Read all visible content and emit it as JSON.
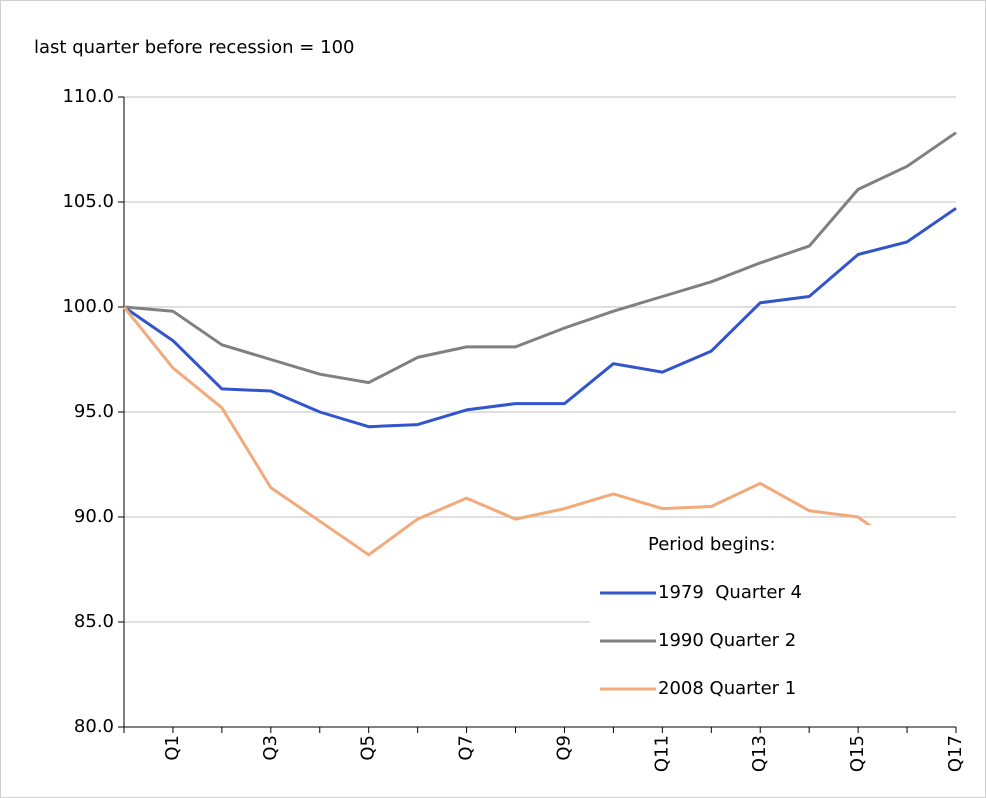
{
  "chart_data": {
    "type": "line",
    "subtitle": "last quarter before recession = 100",
    "categories": [
      null,
      "Q1",
      null,
      "Q3",
      null,
      "Q5",
      null,
      "Q7",
      null,
      "Q9",
      null,
      "Q11",
      null,
      "Q13",
      null,
      "Q15",
      null,
      "Q17"
    ],
    "series": [
      {
        "name": "1979  Quarter 4",
        "color": "#3355cc",
        "values": [
          100,
          98.4,
          96.1,
          96.0,
          95.0,
          94.3,
          94.4,
          95.1,
          95.4,
          95.4,
          97.3,
          96.9,
          97.9,
          100.2,
          100.5,
          102.5,
          103.1,
          104.7
        ]
      },
      {
        "name": "1990 Quarter 2",
        "color": "#808080",
        "values": [
          100,
          99.8,
          98.2,
          97.5,
          96.8,
          96.4,
          97.6,
          98.1,
          98.1,
          99.0,
          99.8,
          100.5,
          101.2,
          102.1,
          102.9,
          105.6,
          106.7,
          108.3
        ]
      },
      {
        "name": "2008 Quarter 1",
        "color": "#f2aa7a",
        "values": [
          100,
          97.1,
          95.2,
          91.4,
          89.8,
          88.2,
          89.9,
          90.9,
          89.9,
          90.4,
          91.1,
          90.4,
          90.5,
          91.6,
          90.3,
          90.0,
          88.3,
          86.8
        ]
      }
    ],
    "ylim": [
      80,
      110
    ],
    "yticks": [
      {
        "value": 80,
        "label": "80.0"
      },
      {
        "value": 85,
        "label": "85.0"
      },
      {
        "value": 90,
        "label": "90.0"
      },
      {
        "value": 95,
        "label": "95.0"
      },
      {
        "value": 100,
        "label": "100.0"
      },
      {
        "value": 105,
        "label": "105.0"
      },
      {
        "value": 110,
        "label": "110.0"
      }
    ],
    "grid": true,
    "legend": "lower right",
    "legend_title": "Period begins:"
  }
}
